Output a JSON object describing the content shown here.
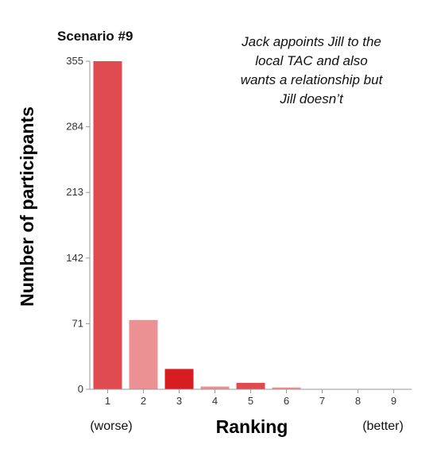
{
  "chart_data": {
    "type": "bar",
    "title": "Scenario #9",
    "annotation": [
      "Jack appoints Jill to the",
      "local TAC and also",
      "wants a relationship but",
      "Jill doesn’t"
    ],
    "xlabel": "Ranking",
    "ylabel": "Number of participants",
    "x_left_label": "(worse)",
    "x_right_label": "(better)",
    "categories": [
      "1",
      "2",
      "3",
      "4",
      "5",
      "6",
      "7",
      "8",
      "9"
    ],
    "values": [
      355,
      75,
      22,
      3,
      7,
      2,
      0,
      0,
      0
    ],
    "colors": [
      "#e04b4f",
      "#eb9193",
      "#d61d22",
      "#eb9193",
      "#e04b4f",
      "#eb9193",
      "#e04b4f",
      "#e04b4f",
      "#e04b4f"
    ],
    "yticks": [
      0,
      71,
      142,
      213,
      284,
      355
    ],
    "ylim": [
      0,
      355
    ],
    "grid": false
  }
}
